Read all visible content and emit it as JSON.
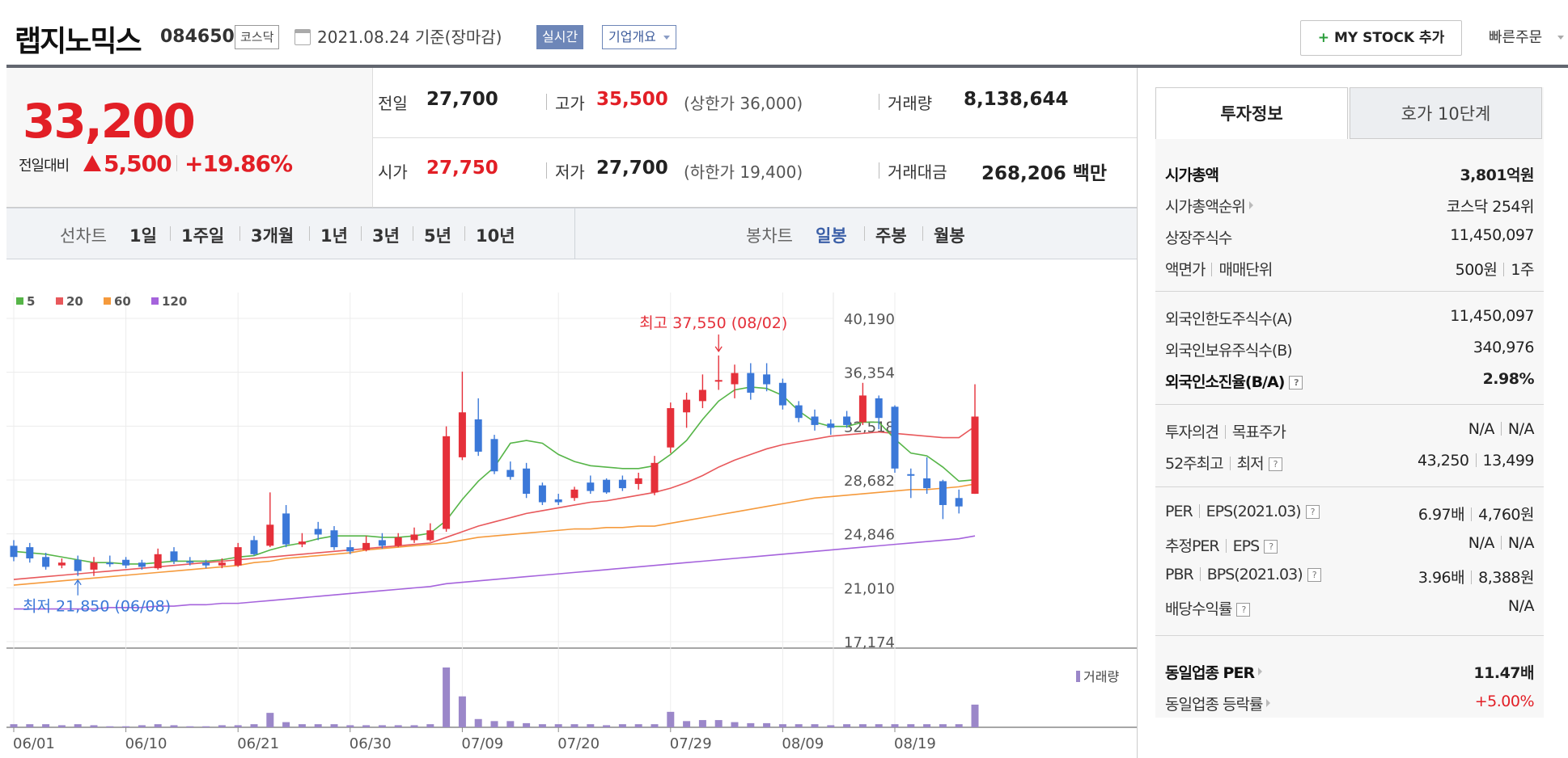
{
  "header": {
    "company": "랩지노믹스",
    "code": "084650",
    "market": "코스닥",
    "base_date": "2021.08.24 기준(장마감)",
    "realtime": "실시간",
    "profile": "기업개요",
    "mystock": "MY STOCK 추가",
    "mystock_plus": "+",
    "quick_order": "빠른주문"
  },
  "price": {
    "current": "33,200",
    "change_label": "전일대비",
    "change": "5,500",
    "change_pct": "+19.86%"
  },
  "quote": {
    "prev_label": "전일",
    "prev": "27,700",
    "high_label": "고가",
    "high": "35,500",
    "upper_limit": "(상한가 36,000)",
    "volume_label": "거래량",
    "volume": "8,138,644",
    "open_label": "시가",
    "open": "27,750",
    "low_label": "저가",
    "low": "27,700",
    "lower_limit": "(하한가 19,400)",
    "amount_label": "거래대금",
    "amount": "268,206 백만"
  },
  "period_bar": {
    "line_label": "선차트",
    "line_periods": [
      "1일",
      "1주일",
      "3개월",
      "1년",
      "3년",
      "5년",
      "10년"
    ],
    "candle_label": "봉차트",
    "candle_periods": [
      "일봉",
      "주봉",
      "월봉"
    ],
    "candle_active": "일봉"
  },
  "colors": {
    "up": "#e5303a",
    "down": "#3b78d8",
    "ma5": "#56b548",
    "ma20": "#e8585b",
    "ma60": "#f59a3c",
    "ma120": "#a563dc",
    "volume": "#9b87c9"
  },
  "chart_data": {
    "type": "candlestick",
    "legend": [
      "5",
      "20",
      "60",
      "120"
    ],
    "y_ticks": [
      "40,190",
      "36,354",
      "32,518",
      "28,682",
      "24,846",
      "21,010",
      "17,174"
    ],
    "ylim": [
      17174,
      40190
    ],
    "x_ticks": [
      "06/01",
      "06/10",
      "06/21",
      "06/30",
      "07/09",
      "07/20",
      "07/29",
      "08/09",
      "08/19"
    ],
    "volume_label": "거래량",
    "annotation_high": "최고 37,550 (08/02)",
    "annotation_low": "최저 21,850 (06/08)",
    "candles": [
      {
        "o": 24000,
        "c": 23200,
        "h": 24400,
        "l": 22900
      },
      {
        "o": 23900,
        "c": 23100,
        "h": 24200,
        "l": 22800
      },
      {
        "o": 23200,
        "c": 22500,
        "h": 23500,
        "l": 22300
      },
      {
        "o": 22600,
        "c": 22800,
        "h": 23100,
        "l": 22400
      },
      {
        "o": 23000,
        "c": 22200,
        "h": 23300,
        "l": 21850
      },
      {
        "o": 22300,
        "c": 22800,
        "h": 23200,
        "l": 21850
      },
      {
        "o": 22800,
        "c": 22700,
        "h": 23300,
        "l": 22500
      },
      {
        "o": 23000,
        "c": 22600,
        "h": 23200,
        "l": 22400
      },
      {
        "o": 22800,
        "c": 22500,
        "h": 23000,
        "l": 22300
      },
      {
        "o": 22400,
        "c": 23400,
        "h": 23800,
        "l": 22300
      },
      {
        "o": 23600,
        "c": 22900,
        "h": 23900,
        "l": 22700
      },
      {
        "o": 22900,
        "c": 22800,
        "h": 23200,
        "l": 22600
      },
      {
        "o": 22800,
        "c": 22600,
        "h": 23000,
        "l": 22400
      },
      {
        "o": 22600,
        "c": 22800,
        "h": 23100,
        "l": 22400
      },
      {
        "o": 22600,
        "c": 23900,
        "h": 24200,
        "l": 22500
      },
      {
        "o": 24400,
        "c": 23400,
        "h": 24700,
        "l": 23300
      },
      {
        "o": 24000,
        "c": 25500,
        "h": 27800,
        "l": 23900
      },
      {
        "o": 26300,
        "c": 24100,
        "h": 26900,
        "l": 23900
      },
      {
        "o": 24100,
        "c": 24300,
        "h": 24900,
        "l": 23900
      },
      {
        "o": 25200,
        "c": 24800,
        "h": 25700,
        "l": 24400
      },
      {
        "o": 25100,
        "c": 23900,
        "h": 25400,
        "l": 23700
      },
      {
        "o": 23900,
        "c": 23600,
        "h": 24400,
        "l": 23400
      },
      {
        "o": 23700,
        "c": 24200,
        "h": 24700,
        "l": 23600
      },
      {
        "o": 24400,
        "c": 24000,
        "h": 24900,
        "l": 23800
      },
      {
        "o": 24000,
        "c": 24600,
        "h": 24900,
        "l": 23900
      },
      {
        "o": 24400,
        "c": 24800,
        "h": 25300,
        "l": 24200
      },
      {
        "o": 24400,
        "c": 25100,
        "h": 25600,
        "l": 24300
      },
      {
        "o": 25200,
        "c": 31800,
        "h": 32500,
        "l": 25000
      },
      {
        "o": 30300,
        "c": 33500,
        "h": 36400,
        "l": 30100
      },
      {
        "o": 33000,
        "c": 30700,
        "h": 34500,
        "l": 30400
      },
      {
        "o": 31600,
        "c": 29300,
        "h": 31900,
        "l": 29100
      },
      {
        "o": 29400,
        "c": 28900,
        "h": 30000,
        "l": 28700
      },
      {
        "o": 29500,
        "c": 27700,
        "h": 29900,
        "l": 27400
      },
      {
        "o": 28300,
        "c": 27100,
        "h": 28500,
        "l": 26900
      },
      {
        "o": 27300,
        "c": 27100,
        "h": 27700,
        "l": 26900
      },
      {
        "o": 27400,
        "c": 28000,
        "h": 28200,
        "l": 27200
      },
      {
        "o": 28500,
        "c": 27900,
        "h": 29000,
        "l": 27700
      },
      {
        "o": 28700,
        "c": 27800,
        "h": 28800,
        "l": 27700
      },
      {
        "o": 28700,
        "c": 28100,
        "h": 29000,
        "l": 27900
      },
      {
        "o": 28400,
        "c": 28800,
        "h": 29200,
        "l": 28000
      },
      {
        "o": 27800,
        "c": 29900,
        "h": 30400,
        "l": 27600
      },
      {
        "o": 31000,
        "c": 33800,
        "h": 34200,
        "l": 30600
      },
      {
        "o": 33500,
        "c": 34400,
        "h": 34900,
        "l": 32400
      },
      {
        "o": 34300,
        "c": 35100,
        "h": 36200,
        "l": 33800
      },
      {
        "o": 35700,
        "c": 35800,
        "h": 37550,
        "l": 35100
      },
      {
        "o": 35500,
        "c": 36300,
        "h": 36900,
        "l": 34500
      },
      {
        "o": 36300,
        "c": 34900,
        "h": 37000,
        "l": 34400
      },
      {
        "o": 36200,
        "c": 35500,
        "h": 37000,
        "l": 35000
      },
      {
        "o": 35600,
        "c": 34000,
        "h": 35900,
        "l": 33700
      },
      {
        "o": 34000,
        "c": 33100,
        "h": 34300,
        "l": 32800
      },
      {
        "o": 33200,
        "c": 32600,
        "h": 33700,
        "l": 32200
      },
      {
        "o": 32700,
        "c": 32400,
        "h": 33000,
        "l": 31900
      },
      {
        "o": 33200,
        "c": 32600,
        "h": 33600,
        "l": 32400
      },
      {
        "o": 32800,
        "c": 34700,
        "h": 35600,
        "l": 32600
      },
      {
        "o": 34500,
        "c": 33100,
        "h": 34700,
        "l": 32300
      },
      {
        "o": 33900,
        "c": 29500,
        "h": 34000,
        "l": 29200
      },
      {
        "o": 29100,
        "c": 29000,
        "h": 29500,
        "l": 27400
      },
      {
        "o": 28800,
        "c": 28100,
        "h": 30300,
        "l": 27700
      },
      {
        "o": 28600,
        "c": 26900,
        "h": 28700,
        "l": 25900
      },
      {
        "o": 27400,
        "c": 26800,
        "h": 28000,
        "l": 26300
      },
      {
        "o": 27700,
        "c": 33200,
        "h": 35500,
        "l": 27700
      }
    ],
    "ma5": [
      23600,
      23500,
      23400,
      23200,
      23000,
      22800,
      22800,
      22700,
      22700,
      22800,
      22900,
      22900,
      22900,
      23000,
      23200,
      23300,
      23700,
      24000,
      24200,
      24500,
      24700,
      24700,
      24700,
      24600,
      24600,
      24700,
      24900,
      25800,
      27300,
      28600,
      29600,
      31300,
      31500,
      31300,
      30500,
      30000,
      29700,
      29600,
      29500,
      29500,
      29700,
      30500,
      31500,
      33000,
      34300,
      35100,
      35300,
      35200,
      34700,
      33600,
      32800,
      32500,
      32500,
      32800,
      32800,
      31600,
      30600,
      30400,
      29600,
      28600,
      28700
    ],
    "ma20": [
      21600,
      21700,
      21800,
      21900,
      22000,
      22100,
      22200,
      22300,
      22400,
      22500,
      22600,
      22700,
      22800,
      22900,
      23000,
      23100,
      23200,
      23300,
      23400,
      23500,
      23600,
      23700,
      23800,
      23900,
      24000,
      24100,
      24200,
      24600,
      25000,
      25400,
      25700,
      26000,
      26300,
      26500,
      26700,
      26900,
      27100,
      27200,
      27400,
      27600,
      27800,
      28100,
      28500,
      29000,
      29600,
      30100,
      30500,
      30900,
      31200,
      31400,
      31600,
      31800,
      31900,
      32000,
      32100,
      32000,
      31900,
      31800,
      31700,
      31700,
      32500
    ],
    "ma60": [
      21200,
      21300,
      21400,
      21500,
      21600,
      21700,
      21800,
      21900,
      22000,
      22100,
      22200,
      22300,
      22400,
      22500,
      22600,
      22800,
      22900,
      23100,
      23200,
      23300,
      23400,
      23500,
      23700,
      23800,
      23900,
      24000,
      24100,
      24200,
      24400,
      24600,
      24700,
      24800,
      24900,
      25000,
      25100,
      25200,
      25200,
      25300,
      25300,
      25400,
      25400,
      25600,
      25800,
      26000,
      26200,
      26400,
      26600,
      26800,
      27000,
      27200,
      27400,
      27500,
      27600,
      27700,
      27800,
      27900,
      28000,
      28000,
      28100,
      28200,
      28400
    ],
    "ma120": [
      19500,
      19500,
      19500,
      19500,
      19500,
      19500,
      19600,
      19600,
      19600,
      19700,
      19700,
      19800,
      19800,
      19900,
      19900,
      20000,
      20100,
      20200,
      20300,
      20400,
      20500,
      20600,
      20700,
      20800,
      20900,
      21000,
      21100,
      21300,
      21400,
      21500,
      21600,
      21700,
      21800,
      21900,
      22000,
      22100,
      22200,
      22300,
      22400,
      22500,
      22600,
      22700,
      22800,
      22900,
      23000,
      23100,
      23200,
      23300,
      23400,
      23500,
      23600,
      23700,
      23800,
      23900,
      24000,
      24100,
      24200,
      24300,
      24400,
      24500,
      24700
    ],
    "volumes": [
      3,
      3,
      3,
      2,
      3,
      2,
      1,
      1,
      2,
      3,
      2,
      1,
      1,
      2,
      2,
      3,
      14,
      5,
      3,
      3,
      3,
      2,
      2,
      2,
      2,
      2,
      3,
      58,
      30,
      8,
      6,
      6,
      4,
      3,
      3,
      3,
      3,
      2,
      3,
      3,
      3,
      15,
      6,
      7,
      7,
      5,
      4,
      4,
      3,
      3,
      3,
      2,
      3,
      3,
      3,
      3,
      3,
      3,
      3,
      3,
      22
    ]
  },
  "side": {
    "tab_active": "투자정보",
    "tab_other": "호가 10단계",
    "rows1": [
      {
        "label": "시가총액",
        "value": "3,801억원",
        "bold": true
      },
      {
        "label": "시가총액순위",
        "value": "코스닥 254위",
        "chev": true
      },
      {
        "label": "상장주식수",
        "value": "11,450,097"
      },
      {
        "label": "액면가",
        "label2": "매매단위",
        "value": "500원",
        "value2": "1주"
      }
    ],
    "rows2": [
      {
        "label": "외국인한도주식수(A)",
        "value": "11,450,097"
      },
      {
        "label": "외국인보유주식수(B)",
        "value": "340,976"
      },
      {
        "label": "외국인소진율(B/A)",
        "value": "2.98%",
        "bold": true,
        "q": true
      }
    ],
    "rows3": [
      {
        "label": "투자의견",
        "label2": "목표주가",
        "value": "N/A",
        "value2": "N/A"
      },
      {
        "label": "52주최고",
        "label2": "최저",
        "value": "43,250",
        "value2": "13,499",
        "q": true
      }
    ],
    "rows4": [
      {
        "label": "PER",
        "label2": "EPS(2021.03)",
        "value": "6.97배",
        "value2": "4,760원",
        "q": true
      },
      {
        "label": "추정PER",
        "label2": "EPS",
        "value": "N/A",
        "value2": "N/A",
        "q": true
      },
      {
        "label": "PBR",
        "label2": "BPS(2021.03)",
        "value": "3.96배",
        "value2": "8,388원",
        "q": true
      },
      {
        "label": "배당수익률",
        "value": "N/A",
        "q": true
      }
    ],
    "rows5": [
      {
        "label": "동일업종 PER",
        "value": "11.47배",
        "bold": true,
        "chev": true
      },
      {
        "label": "동일업종 등락률",
        "value": "+5.00%",
        "red": true,
        "chev": true
      }
    ],
    "q_glyph": "?"
  }
}
